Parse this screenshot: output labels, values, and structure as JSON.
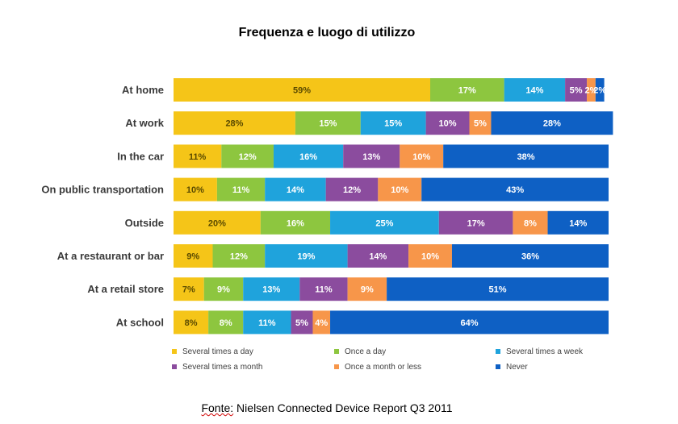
{
  "chart_data": {
    "type": "bar",
    "orientation": "horizontal",
    "stacked": true,
    "title": "Frequenza e luogo di utilizzo",
    "categories": [
      "At home",
      "At work",
      "In the car",
      "On public transportation",
      "Outside",
      "At a restaurant or bar",
      "At a retail store",
      "At school"
    ],
    "series": [
      {
        "name": "Several times a day",
        "color": "#F5C518",
        "values": [
          59,
          28,
          11,
          10,
          20,
          9,
          7,
          8
        ]
      },
      {
        "name": "Once a day",
        "color": "#8DC63F",
        "values": [
          17,
          15,
          12,
          11,
          16,
          12,
          9,
          8
        ]
      },
      {
        "name": "Several times a week",
        "color": "#1FA3DC",
        "values": [
          14,
          15,
          16,
          14,
          25,
          19,
          13,
          11
        ]
      },
      {
        "name": "Several times a month",
        "color": "#8B4C9E",
        "values": [
          5,
          10,
          13,
          12,
          17,
          14,
          11,
          5
        ]
      },
      {
        "name": "Once a month or less",
        "color": "#F7964A",
        "values": [
          2,
          5,
          10,
          10,
          8,
          10,
          9,
          4
        ]
      },
      {
        "name": "Never",
        "color": "#0E60C4",
        "values": [
          2,
          28,
          38,
          43,
          14,
          36,
          51,
          64
        ]
      }
    ],
    "value_suffix": "%",
    "xlim": [
      0,
      100
    ],
    "legend_position": "bottom",
    "grid": false
  },
  "source": {
    "prefix": "Fonte:",
    "text": " Nielsen Connected Device Report Q3 2011"
  }
}
